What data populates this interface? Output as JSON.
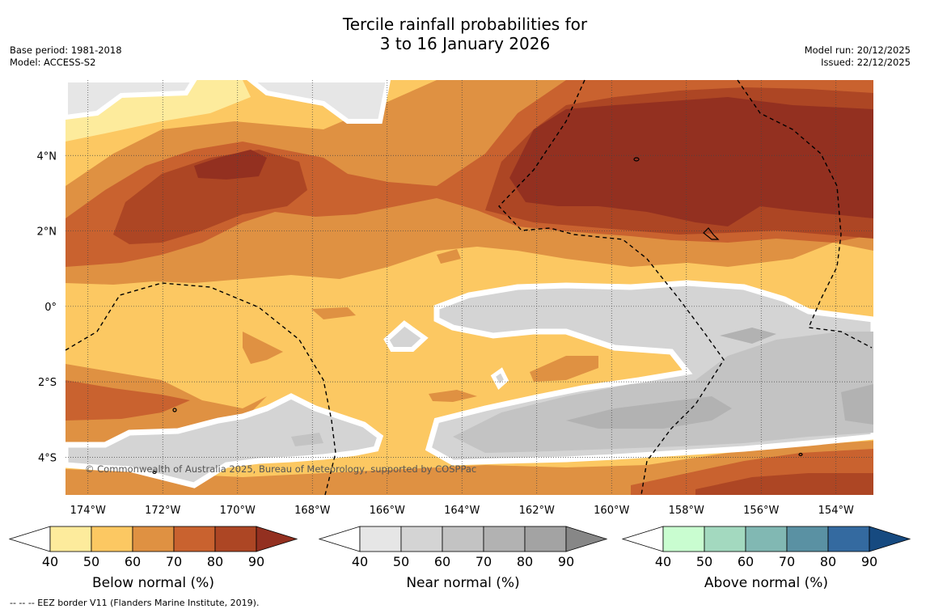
{
  "title_line1": "Tercile rainfall probabilities for",
  "title_line2": "3 to 16 January 2026",
  "base_period": "Base period: 1981-2018",
  "model": "Model: ACCESS-S2",
  "model_run": "Model run: 20/12/2025",
  "issued": "Issued: 22/12/2025",
  "copyright": "© Commonwealth of Australia 2025, Bureau of Meteorology, supported by COSPPac",
  "footer": "--  --  -- EEZ border V11 (Flanders Marine Institute, 2019).",
  "map": {
    "lon_labels": [
      "174°W",
      "172°W",
      "170°W",
      "168°W",
      "166°W",
      "164°W",
      "162°W",
      "160°W",
      "158°W",
      "156°W",
      "154°W"
    ],
    "lon_values": [
      -174,
      -172,
      -170,
      -168,
      -166,
      -164,
      -162,
      -160,
      -158,
      -156,
      -154
    ],
    "lat_labels": [
      "4°N",
      "2°N",
      "0°",
      "2°S",
      "4°S"
    ],
    "lat_values": [
      4,
      2,
      0,
      -2,
      -4
    ],
    "lon_range": [
      -174.6,
      -153.0
    ],
    "lat_range": [
      -5.0,
      6.0
    ]
  },
  "colorbars": [
    {
      "label": "Below normal (%)",
      "ticks": [
        "40",
        "50",
        "60",
        "70",
        "80",
        "90"
      ],
      "colors": [
        "#ffffff",
        "#fdeb9c",
        "#fcc862",
        "#df9142",
        "#c9622f",
        "#ad4624",
        "#933020"
      ]
    },
    {
      "label": "Near normal (%)",
      "ticks": [
        "40",
        "50",
        "60",
        "70",
        "80",
        "90"
      ],
      "colors": [
        "#ffffff",
        "#e6e6e6",
        "#d4d4d4",
        "#c3c3c3",
        "#b2b2b2",
        "#a3a3a3",
        "#878787"
      ]
    },
    {
      "label": "Above normal (%)",
      "ticks": [
        "40",
        "50",
        "60",
        "70",
        "80",
        "90"
      ],
      "colors": [
        "#ffffff",
        "#c9fdd0",
        "#a3d9bf",
        "#81b8b3",
        "#5a91a3",
        "#346aa0",
        "#164a80"
      ]
    }
  ],
  "map_colors": {
    "below_50": "#fdeb9c",
    "below_60": "#fcc862",
    "below_70": "#df9142",
    "below_80": "#c9622f",
    "below_90": "#ad4624",
    "below_max": "#933020",
    "near_50": "#e6e6e6",
    "near_60": "#d4d4d4",
    "near_70": "#c3c3c3",
    "near_80": "#b2b2b2",
    "near_90": "#a3a3a3"
  }
}
